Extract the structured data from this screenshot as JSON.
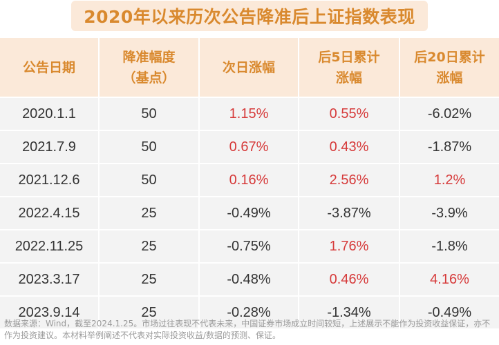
{
  "title": "2020年以来历次公告降准后上证指数表现",
  "colors": {
    "accent": "#d9892e",
    "header_bg": "#fbe9d9",
    "row_bg": "#f3f3f3",
    "positive": "#d63a3a",
    "negative": "#333333"
  },
  "columns": [
    [
      "公告日期"
    ],
    [
      "降准幅度",
      "（基点）"
    ],
    [
      "次日涨幅"
    ],
    [
      "后5日累计",
      "涨幅"
    ],
    [
      "后20日累计",
      "涨幅"
    ]
  ],
  "rows": [
    [
      "2020.1.1",
      "50",
      "1.15%",
      "0.55%",
      "-6.02%"
    ],
    [
      "2021.7.9",
      "50",
      "0.67%",
      "0.43%",
      "-1.87%"
    ],
    [
      "2021.12.6",
      "50",
      "0.16%",
      "2.56%",
      "1.2%"
    ],
    [
      "2022.4.15",
      "25",
      "-0.49%",
      "-3.87%",
      "-3.9%"
    ],
    [
      "2022.11.25",
      "25",
      "-0.75%",
      "1.76%",
      "-1.8%"
    ],
    [
      "2023.3.17",
      "25",
      "-0.48%",
      "0.46%",
      "4.16%"
    ],
    [
      "2023.9.14",
      "25",
      "-0.28%",
      "-1.34%",
      "-0.49%"
    ]
  ],
  "footnote": "数据来源：Wind，截至2024.1.25。市场过往表现不代表未来，中国证券市场成立时间较短，上述展示不能作为投资收益保证，亦不作为投资建议。本材料举例阐述不代表对实际投资收益/数据的预测、保证。",
  "chart_data": {
    "type": "table",
    "title": "2020年以来历次公告降准后上证指数表现",
    "headers": [
      "公告日期",
      "降准幅度（基点）",
      "次日涨幅",
      "后5日累计涨幅",
      "后20日累计涨幅"
    ],
    "rows": [
      [
        "2020.1.1",
        50,
        1.15,
        0.55,
        -6.02
      ],
      [
        "2021.7.9",
        50,
        0.67,
        0.43,
        -1.87
      ],
      [
        "2021.12.6",
        50,
        0.16,
        2.56,
        1.2
      ],
      [
        "2022.4.15",
        25,
        -0.49,
        -3.87,
        -3.9
      ],
      [
        "2022.11.25",
        25,
        -0.75,
        1.76,
        -1.8
      ],
      [
        "2023.3.17",
        25,
        -0.48,
        0.46,
        4.16
      ],
      [
        "2023.9.14",
        25,
        -0.28,
        -1.34,
        -0.49
      ]
    ]
  }
}
